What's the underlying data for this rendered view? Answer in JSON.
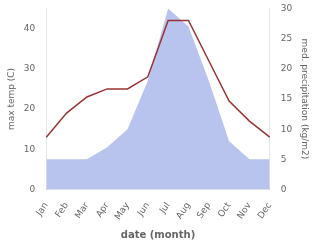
{
  "chart_data": {
    "type": "line",
    "xlabel": "date (month)",
    "ylabel": "max temp (C)",
    "y2label": "med. precipitation (kg/m2)",
    "categories": [
      "Jan",
      "Feb",
      "Mar",
      "Apr",
      "May",
      "Jun",
      "Jul",
      "Aug",
      "Sep",
      "Oct",
      "Nov",
      "Dec"
    ],
    "series": [
      {
        "type": "line",
        "color": "#993333",
        "values": [
          13,
          19,
          23,
          25,
          25,
          28,
          42,
          42,
          32,
          22,
          17,
          13
        ]
      },
      {
        "type": "area",
        "axis": "y2",
        "color": "#b8c4ee",
        "values": [
          5,
          5,
          5,
          7,
          10,
          18,
          30,
          27,
          18,
          8,
          5,
          5
        ]
      }
    ],
    "ylim": [
      0,
      45
    ],
    "yticks": [
      0,
      10,
      20,
      30,
      40
    ],
    "y2lim": [
      0,
      30
    ],
    "y2ticks": [
      0,
      5,
      10,
      15,
      20,
      25,
      30
    ],
    "background_color": "#ffffff",
    "grid": false
  }
}
